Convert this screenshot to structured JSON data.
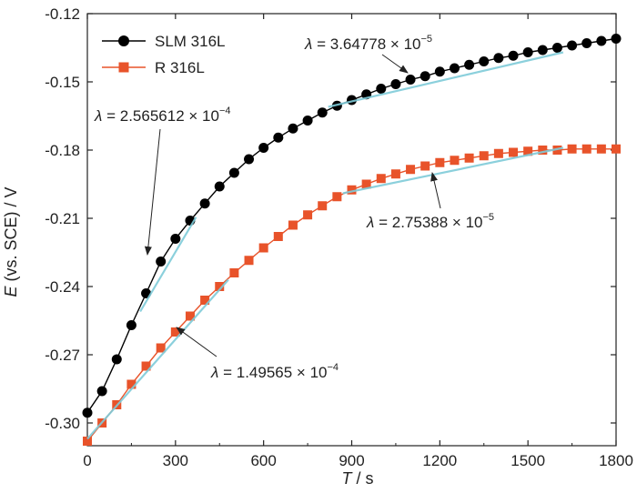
{
  "chart_data": {
    "type": "scatter",
    "xlabel": {
      "var": "T",
      "unit": " / s"
    },
    "ylabel": {
      "var": "E",
      "rest": " (vs. SCE) / V"
    },
    "xlim": [
      0,
      1800
    ],
    "ylim": [
      -0.31,
      -0.12
    ],
    "x_ticks": [
      0,
      300,
      600,
      900,
      1200,
      1500,
      1800
    ],
    "x_tick_labels": [
      "0",
      "300",
      "600",
      "900",
      "1200",
      "1500",
      "1800"
    ],
    "y_ticks": [
      -0.12,
      -0.15,
      -0.18,
      -0.21,
      -0.24,
      -0.27,
      -0.3
    ],
    "y_tick_labels": [
      "-0.12",
      "-0.15",
      "-0.18",
      "-0.21",
      "-0.24",
      "-0.27",
      "-0.30"
    ],
    "grid": false,
    "legend_position": "top-left",
    "series": [
      {
        "name": "SLM 316L",
        "marker": "circle",
        "color": "#000000",
        "x": [
          0,
          50,
          100,
          150,
          200,
          250,
          300,
          350,
          400,
          450,
          500,
          550,
          600,
          650,
          700,
          750,
          800,
          850,
          900,
          950,
          1000,
          1050,
          1100,
          1150,
          1200,
          1250,
          1300,
          1350,
          1400,
          1450,
          1500,
          1550,
          1600,
          1650,
          1700,
          1750,
          1800
        ],
        "y": [
          -0.2955,
          -0.286,
          -0.272,
          -0.257,
          -0.243,
          -0.229,
          -0.219,
          -0.211,
          -0.2035,
          -0.196,
          -0.19,
          -0.184,
          -0.179,
          -0.1745,
          -0.1705,
          -0.167,
          -0.1635,
          -0.1605,
          -0.158,
          -0.1555,
          -0.153,
          -0.151,
          -0.149,
          -0.1475,
          -0.1455,
          -0.144,
          -0.1425,
          -0.141,
          -0.1395,
          -0.1385,
          -0.137,
          -0.136,
          -0.135,
          -0.134,
          -0.133,
          -0.132,
          -0.131
        ]
      },
      {
        "name": "R 316L",
        "marker": "square",
        "color": "#e8532a",
        "x": [
          0,
          50,
          100,
          150,
          200,
          250,
          300,
          350,
          400,
          450,
          500,
          550,
          600,
          650,
          700,
          750,
          800,
          850,
          900,
          950,
          1000,
          1050,
          1100,
          1150,
          1200,
          1250,
          1300,
          1350,
          1400,
          1450,
          1500,
          1550,
          1600,
          1650,
          1700,
          1750,
          1800
        ],
        "y": [
          -0.308,
          -0.3,
          -0.292,
          -0.283,
          -0.275,
          -0.267,
          -0.26,
          -0.253,
          -0.246,
          -0.24,
          -0.234,
          -0.2285,
          -0.223,
          -0.218,
          -0.213,
          -0.2085,
          -0.2045,
          -0.2005,
          -0.1975,
          -0.195,
          -0.1925,
          -0.1905,
          -0.1885,
          -0.187,
          -0.1855,
          -0.1845,
          -0.1835,
          -0.1825,
          -0.1815,
          -0.181,
          -0.1805,
          -0.18,
          -0.18,
          -0.1795,
          -0.1795,
          -0.1795,
          -0.1795
        ]
      }
    ],
    "fit_lines": [
      {
        "x": [
          180,
          370
        ],
        "y": [
          -0.251,
          -0.2095
        ]
      },
      {
        "x": [
          820,
          1620
        ],
        "y": [
          -0.161,
          -0.137
        ]
      },
      {
        "x": [
          0,
          480
        ],
        "y": [
          -0.307,
          -0.237
        ]
      },
      {
        "x": [
          870,
          1620
        ],
        "y": [
          -0.199,
          -0.179
        ]
      }
    ],
    "annotations": [
      {
        "base": "2.565612 × 10",
        "exp": "−4"
      },
      {
        "base": "3.64778 × 10",
        "exp": "−5"
      },
      {
        "base": "2.75388 × 10",
        "exp": "−5"
      },
      {
        "base": "1.49565 × 10",
        "exp": "−4"
      }
    ],
    "lambda_symbol": "λ",
    "annotation_prefix": " = "
  },
  "colors": {
    "slm": "#000000",
    "r": "#e8532a",
    "fit": "#7fcbd9",
    "axis": "#222222"
  }
}
